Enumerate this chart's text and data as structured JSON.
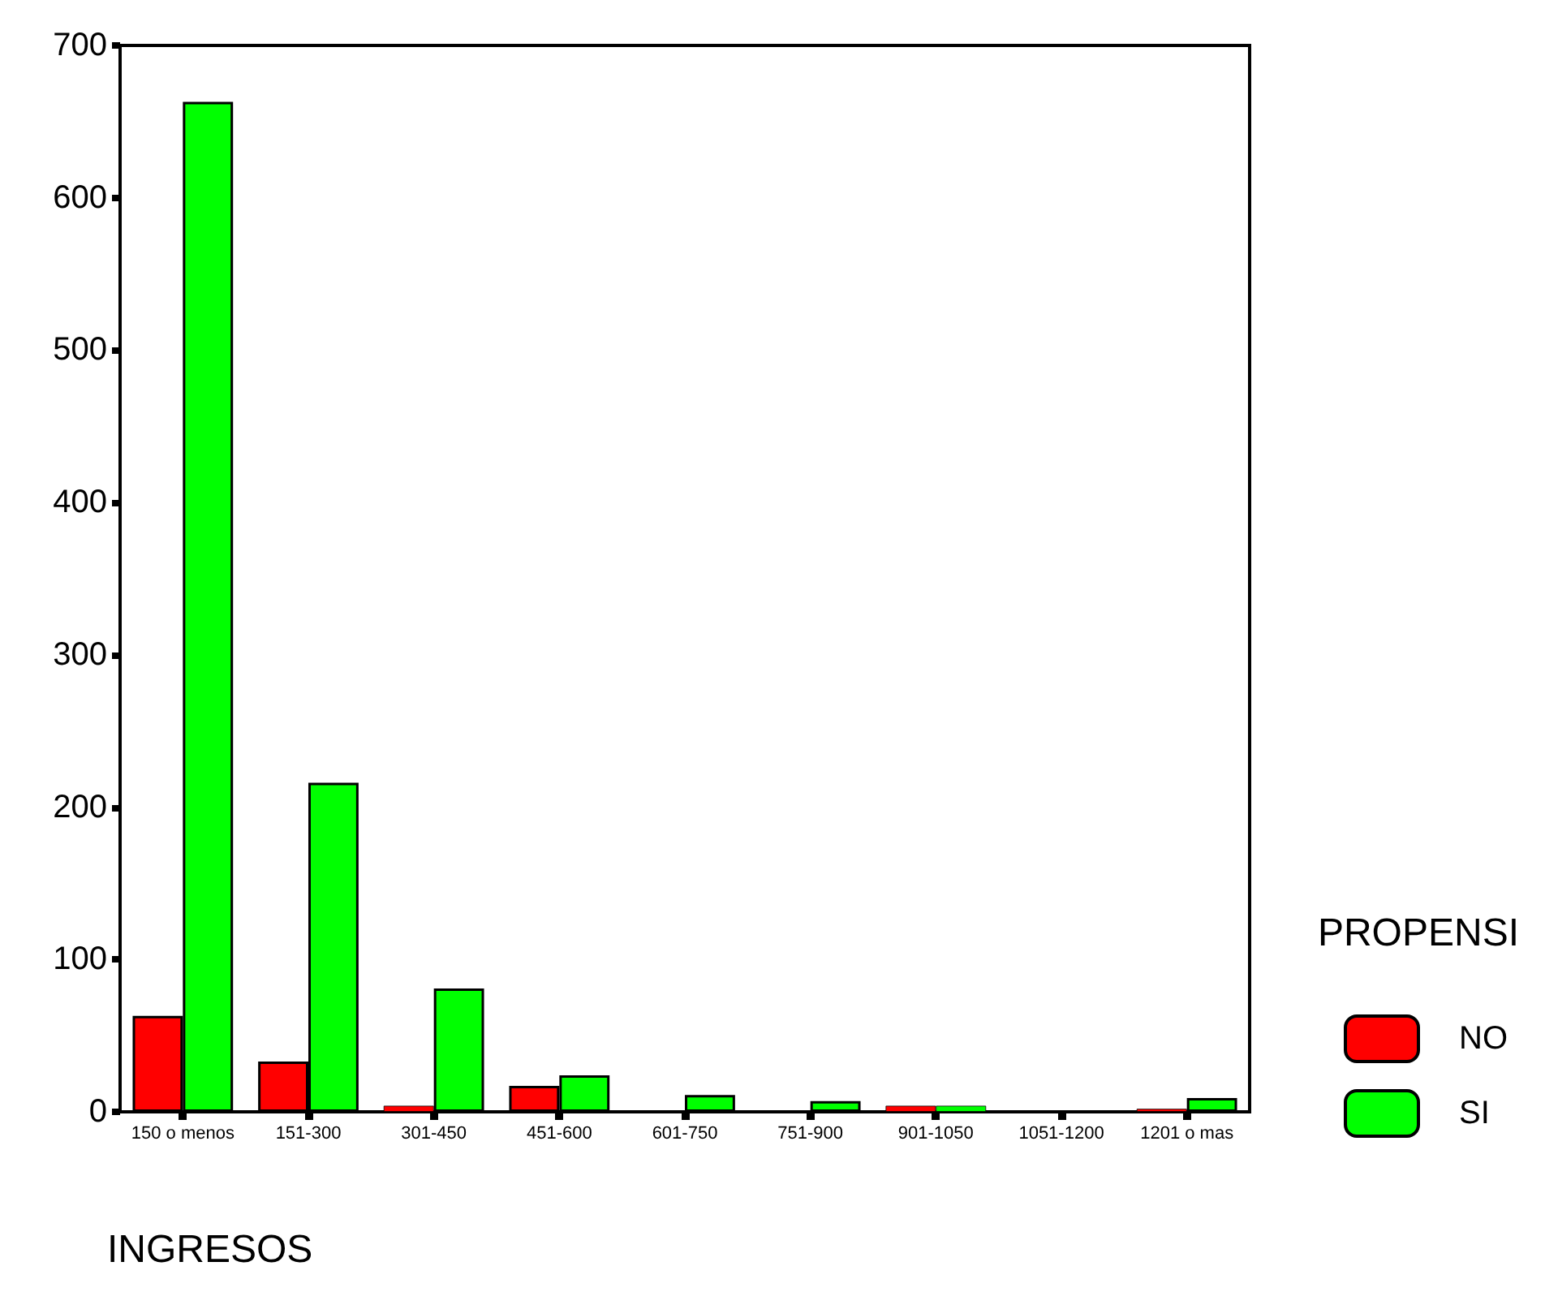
{
  "chart_data": {
    "type": "bar",
    "xlabel": "INGRESOS",
    "legend_title": "PROPENSI",
    "legend": "right",
    "categories": [
      "150 o menos",
      "151-300",
      "301-450",
      "451-600",
      "601-750",
      "751-900",
      "901-1050",
      "1051-1200",
      "1201 o mas"
    ],
    "series": [
      {
        "name": "NO",
        "color": "#ff0000",
        "values": [
          63,
          33,
          4,
          17,
          0,
          0,
          4,
          0,
          2
        ]
      },
      {
        "name": "SI",
        "color": "#00ff00",
        "values": [
          663,
          216,
          81,
          24,
          11,
          7,
          4,
          0,
          9
        ]
      }
    ],
    "ylim": [
      0,
      700
    ],
    "yticks": [
      0,
      100,
      200,
      300,
      400,
      500,
      600,
      700
    ],
    "grid": false
  }
}
